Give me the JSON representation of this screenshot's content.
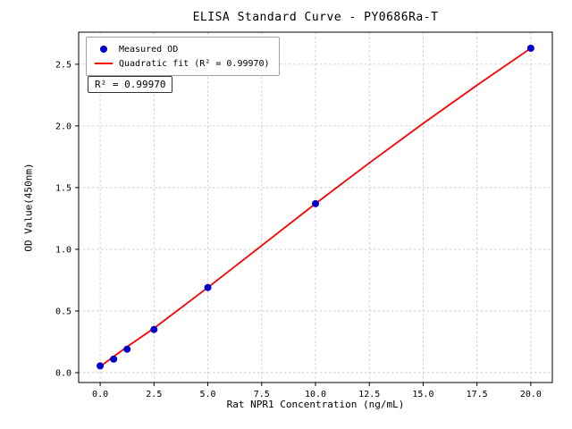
{
  "title": "ELISA Standard Curve - PY0686Ra-T",
  "annotation": "R² = 0.99970",
  "legend": {
    "measured_label": "Measured OD",
    "fit_label": "Quadratic fit (R² = 0.99970)"
  },
  "chart_data": {
    "type": "scatter",
    "title": "ELISA Standard Curve - PY0686Ra-T",
    "xlabel": "Rat NPR1 Concentration (ng/mL)",
    "ylabel": "OD Value(450nm)",
    "xlim": [
      -1.0,
      21.0
    ],
    "ylim": [
      -0.08,
      2.76
    ],
    "xticks": [
      0.0,
      2.5,
      5.0,
      7.5,
      10.0,
      12.5,
      15.0,
      17.5,
      20.0
    ],
    "xtick_labels": [
      "0.0",
      "2.5",
      "5.0",
      "7.5",
      "10.0",
      "12.5",
      "15.0",
      "17.5",
      "20.0"
    ],
    "yticks": [
      0.0,
      0.5,
      1.0,
      1.5,
      2.0,
      2.5
    ],
    "ytick_labels": [
      "0.0",
      "0.5",
      "1.0",
      "1.5",
      "2.0",
      "2.5"
    ],
    "grid": true,
    "grid_style": "dashed",
    "legend_position": "upper left",
    "series": [
      {
        "name": "Quadratic fit (R² = 0.99970)",
        "type": "line",
        "color": "#ff0000",
        "x": [
          0,
          1.25,
          2.5,
          5,
          7.5,
          10,
          12.5,
          15,
          17.5,
          20
        ],
        "y": [
          0.05,
          0.21,
          0.36,
          0.69,
          1.03,
          1.37,
          1.7,
          2.02,
          2.33,
          2.63
        ]
      },
      {
        "name": "Measured OD",
        "type": "scatter",
        "color": "#0000cd",
        "x": [
          0,
          0.625,
          1.25,
          2.5,
          5,
          10,
          20
        ],
        "y": [
          0.055,
          0.11,
          0.19,
          0.35,
          0.69,
          1.37,
          2.63
        ]
      }
    ],
    "r_squared": 0.9997
  }
}
